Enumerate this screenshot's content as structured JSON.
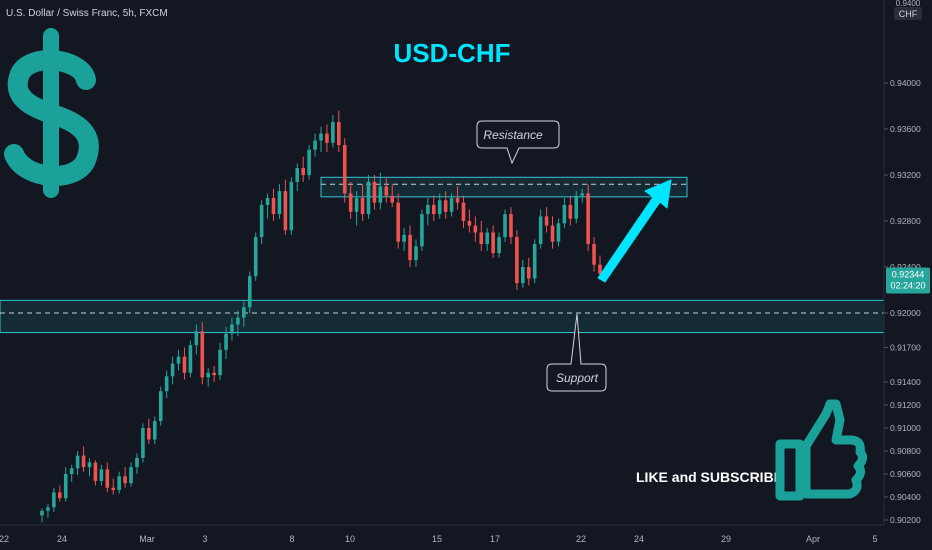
{
  "header": {
    "symbol_label": "U.S. Dollar / Swiss Franc, 5h, FXCM"
  },
  "chart_title": "USD-CHF",
  "price_axis": {
    "currency_top": "0.9400",
    "currency_unit": "CHF",
    "ticks": [
      "0.94000",
      "0.93600",
      "0.93200",
      "0.92800",
      "0.92400",
      "0.92000",
      "0.91700",
      "0.91400",
      "0.91200",
      "0.91000",
      "0.90800",
      "0.90600",
      "0.90400",
      "0.90200"
    ],
    "current_price": "0.92344",
    "countdown": "02:24:20"
  },
  "time_axis": {
    "ticks": [
      "22",
      "24",
      "Mar",
      "3",
      "8",
      "10",
      "15",
      "17",
      "22",
      "24",
      "29",
      "Apr",
      "5"
    ]
  },
  "annotations": {
    "resistance": "Resistance",
    "support": "Support",
    "cta": "LIKE and SUBSCRIBE"
  },
  "icons": {
    "dollar": "dollar-sign-icon",
    "like": "thumbs-up-icon",
    "arrow": "up-arrow-icon"
  },
  "colors": {
    "background": "#131722",
    "bull": "#26a69a",
    "bear": "#ef5350",
    "accent": "#00bcd4",
    "title": "#00e5ff",
    "price_badge": "#26a69a"
  },
  "chart_data": {
    "type": "candlestick",
    "resistance_zone": [
      0.9301,
      0.9318
    ],
    "support_zone": [
      0.9183,
      0.9211
    ],
    "support_line": 0.92,
    "resistance_line": 0.9312,
    "current_price": 0.92344,
    "candles": [
      [
        0.9024,
        0.903,
        0.9018,
        0.9028
      ],
      [
        0.9028,
        0.9034,
        0.9022,
        0.9031
      ],
      [
        0.9031,
        0.9048,
        0.9027,
        0.9044
      ],
      [
        0.9044,
        0.905,
        0.9036,
        0.9039
      ],
      [
        0.9039,
        0.9066,
        0.9036,
        0.906
      ],
      [
        0.906,
        0.9068,
        0.9053,
        0.9065
      ],
      [
        0.9065,
        0.908,
        0.9059,
        0.9076
      ],
      [
        0.9076,
        0.9084,
        0.9062,
        0.9066
      ],
      [
        0.9066,
        0.9074,
        0.9058,
        0.907
      ],
      [
        0.907,
        0.9072,
        0.905,
        0.9054
      ],
      [
        0.9054,
        0.9068,
        0.905,
        0.9064
      ],
      [
        0.9064,
        0.907,
        0.9044,
        0.9048
      ],
      [
        0.9048,
        0.9056,
        0.9042,
        0.9046
      ],
      [
        0.9046,
        0.9062,
        0.9043,
        0.9058
      ],
      [
        0.9058,
        0.9066,
        0.9048,
        0.9052
      ],
      [
        0.9052,
        0.907,
        0.9049,
        0.9066
      ],
      [
        0.9066,
        0.9078,
        0.906,
        0.9074
      ],
      [
        0.9074,
        0.9104,
        0.907,
        0.91
      ],
      [
        0.91,
        0.9108,
        0.9086,
        0.909
      ],
      [
        0.909,
        0.911,
        0.9086,
        0.9106
      ],
      [
        0.9106,
        0.9136,
        0.9102,
        0.9132
      ],
      [
        0.9132,
        0.915,
        0.9126,
        0.9145
      ],
      [
        0.9145,
        0.9162,
        0.9138,
        0.9156
      ],
      [
        0.9156,
        0.9168,
        0.915,
        0.9162
      ],
      [
        0.9162,
        0.917,
        0.9142,
        0.9148
      ],
      [
        0.9148,
        0.9176,
        0.9144,
        0.9172
      ],
      [
        0.9172,
        0.919,
        0.9164,
        0.9184
      ],
      [
        0.9184,
        0.9192,
        0.9138,
        0.9144
      ],
      [
        0.9144,
        0.9152,
        0.9136,
        0.9148
      ],
      [
        0.9148,
        0.9154,
        0.914,
        0.9146
      ],
      [
        0.9146,
        0.9174,
        0.9142,
        0.9168
      ],
      [
        0.9168,
        0.9188,
        0.916,
        0.9182
      ],
      [
        0.9182,
        0.9196,
        0.9176,
        0.919
      ],
      [
        0.919,
        0.9202,
        0.918,
        0.9196
      ],
      [
        0.9196,
        0.921,
        0.9188,
        0.9205
      ],
      [
        0.9205,
        0.9236,
        0.92,
        0.9232
      ],
      [
        0.9232,
        0.927,
        0.9228,
        0.9266
      ],
      [
        0.9266,
        0.9298,
        0.926,
        0.9294
      ],
      [
        0.9294,
        0.9304,
        0.9282,
        0.93
      ],
      [
        0.93,
        0.9308,
        0.928,
        0.9286
      ],
      [
        0.9286,
        0.9312,
        0.9282,
        0.9306
      ],
      [
        0.9306,
        0.9316,
        0.9268,
        0.9272
      ],
      [
        0.9272,
        0.9318,
        0.9268,
        0.9314
      ],
      [
        0.9314,
        0.933,
        0.9306,
        0.9326
      ],
      [
        0.9326,
        0.9336,
        0.9314,
        0.932
      ],
      [
        0.932,
        0.9346,
        0.9316,
        0.9342
      ],
      [
        0.9342,
        0.9356,
        0.9336,
        0.935
      ],
      [
        0.935,
        0.9362,
        0.934,
        0.9356
      ],
      [
        0.9356,
        0.9364,
        0.934,
        0.9348
      ],
      [
        0.9348,
        0.9372,
        0.9344,
        0.9366
      ],
      [
        0.9366,
        0.9376,
        0.934,
        0.9346
      ],
      [
        0.9346,
        0.9352,
        0.9296,
        0.9304
      ],
      [
        0.9304,
        0.9314,
        0.9282,
        0.9288
      ],
      [
        0.9288,
        0.9306,
        0.9276,
        0.93
      ],
      [
        0.93,
        0.9312,
        0.928,
        0.9286
      ],
      [
        0.9286,
        0.932,
        0.9282,
        0.9314
      ],
      [
        0.9314,
        0.932,
        0.929,
        0.9296
      ],
      [
        0.9296,
        0.9322,
        0.929,
        0.931
      ],
      [
        0.931,
        0.9318,
        0.9296,
        0.9302
      ],
      [
        0.9302,
        0.9312,
        0.9292,
        0.9296
      ],
      [
        0.9296,
        0.9304,
        0.9256,
        0.9262
      ],
      [
        0.9262,
        0.9274,
        0.9254,
        0.9268
      ],
      [
        0.9268,
        0.9276,
        0.924,
        0.9246
      ],
      [
        0.9246,
        0.9264,
        0.924,
        0.9258
      ],
      [
        0.9258,
        0.929,
        0.9254,
        0.9286
      ],
      [
        0.9286,
        0.93,
        0.9276,
        0.9294
      ],
      [
        0.9294,
        0.9302,
        0.928,
        0.9286
      ],
      [
        0.9286,
        0.9304,
        0.9282,
        0.9298
      ],
      [
        0.9298,
        0.9306,
        0.9282,
        0.9288
      ],
      [
        0.9288,
        0.9304,
        0.9284,
        0.93
      ],
      [
        0.93,
        0.931,
        0.929,
        0.9296
      ],
      [
        0.9296,
        0.9302,
        0.9274,
        0.928
      ],
      [
        0.928,
        0.929,
        0.927,
        0.9276
      ],
      [
        0.9276,
        0.9284,
        0.9262,
        0.927
      ],
      [
        0.927,
        0.928,
        0.9254,
        0.926
      ],
      [
        0.926,
        0.9274,
        0.9254,
        0.927
      ],
      [
        0.927,
        0.9276,
        0.9248,
        0.9252
      ],
      [
        0.9252,
        0.927,
        0.9248,
        0.9266
      ],
      [
        0.9266,
        0.929,
        0.9262,
        0.9286
      ],
      [
        0.9286,
        0.9292,
        0.926,
        0.9266
      ],
      [
        0.9266,
        0.9272,
        0.922,
        0.9226
      ],
      [
        0.9226,
        0.9246,
        0.9222,
        0.924
      ],
      [
        0.924,
        0.9248,
        0.9224,
        0.923
      ],
      [
        0.923,
        0.9264,
        0.9226,
        0.926
      ],
      [
        0.926,
        0.929,
        0.9256,
        0.9284
      ],
      [
        0.9284,
        0.9292,
        0.927,
        0.9276
      ],
      [
        0.9276,
        0.9284,
        0.9256,
        0.9262
      ],
      [
        0.9262,
        0.9282,
        0.9258,
        0.9278
      ],
      [
        0.9278,
        0.93,
        0.9274,
        0.9294
      ],
      [
        0.9294,
        0.9302,
        0.9276,
        0.9282
      ],
      [
        0.9282,
        0.9306,
        0.9278,
        0.9302
      ],
      [
        0.9302,
        0.9308,
        0.9296,
        0.9304
      ],
      [
        0.9304,
        0.9312,
        0.9254,
        0.926
      ],
      [
        0.926,
        0.9266,
        0.9236,
        0.9242
      ],
      [
        0.9242,
        0.925,
        0.923,
        0.9234
      ]
    ]
  }
}
